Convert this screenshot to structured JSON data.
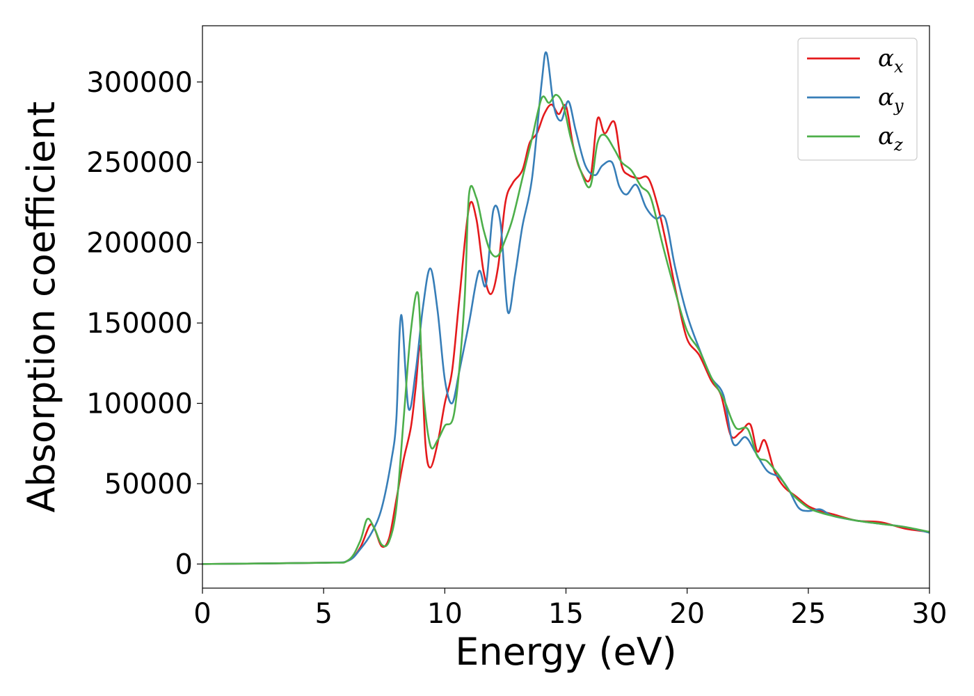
{
  "chart_data": {
    "type": "line",
    "xlabel": "Energy (eV)",
    "ylabel": "Absorption coefficient",
    "xlim": [
      0,
      30
    ],
    "ylim": [
      -15000,
      335000
    ],
    "xticks": [
      0,
      5,
      10,
      15,
      20,
      25,
      30
    ],
    "xtick_labels": [
      "0",
      "5",
      "10",
      "15",
      "20",
      "25",
      "30"
    ],
    "yticks": [
      0,
      50000,
      100000,
      150000,
      200000,
      250000,
      300000
    ],
    "ytick_labels": [
      "0",
      "50000",
      "100000",
      "150000",
      "200000",
      "250000",
      "300000"
    ],
    "grid": false,
    "legend_position": "top-right",
    "series": [
      {
        "name": "α_x",
        "legend_base": "α",
        "legend_sub": "x",
        "color": "#e41a1c",
        "points": [
          [
            0,
            0
          ],
          [
            5,
            800
          ],
          [
            6,
            2000
          ],
          [
            6.5,
            10000
          ],
          [
            6.9,
            24000
          ],
          [
            7.1,
            22000
          ],
          [
            7.4,
            11000
          ],
          [
            7.7,
            16000
          ],
          [
            8,
            40000
          ],
          [
            8.3,
            65000
          ],
          [
            8.6,
            85000
          ],
          [
            8.8,
            110000
          ],
          [
            9,
            135000
          ],
          [
            9.2,
            75000
          ],
          [
            9.4,
            60000
          ],
          [
            9.7,
            75000
          ],
          [
            10,
            100000
          ],
          [
            10.3,
            120000
          ],
          [
            10.6,
            165000
          ],
          [
            11,
            222000
          ],
          [
            11.3,
            215000
          ],
          [
            11.6,
            182000
          ],
          [
            11.9,
            168000
          ],
          [
            12.2,
            185000
          ],
          [
            12.5,
            225000
          ],
          [
            12.8,
            237000
          ],
          [
            13.2,
            245000
          ],
          [
            13.5,
            262000
          ],
          [
            13.8,
            268000
          ],
          [
            14.1,
            280000
          ],
          [
            14.4,
            286000
          ],
          [
            14.7,
            280000
          ],
          [
            15,
            285000
          ],
          [
            15.3,
            260000
          ],
          [
            15.6,
            245000
          ],
          [
            16,
            240000
          ],
          [
            16.3,
            277000
          ],
          [
            16.6,
            268000
          ],
          [
            17,
            275000
          ],
          [
            17.3,
            248000
          ],
          [
            17.6,
            242000
          ],
          [
            18,
            240000
          ],
          [
            18.4,
            240000
          ],
          [
            18.8,
            222000
          ],
          [
            19.2,
            195000
          ],
          [
            19.6,
            165000
          ],
          [
            20,
            140000
          ],
          [
            20.5,
            130000
          ],
          [
            21,
            114000
          ],
          [
            21.4,
            105000
          ],
          [
            21.8,
            80000
          ],
          [
            22.2,
            82000
          ],
          [
            22.6,
            87000
          ],
          [
            22.9,
            70000
          ],
          [
            23.2,
            77000
          ],
          [
            23.6,
            58000
          ],
          [
            24,
            48000
          ],
          [
            24.5,
            42000
          ],
          [
            25,
            36000
          ],
          [
            25.5,
            33000
          ],
          [
            26,
            31000
          ],
          [
            27,
            27000
          ],
          [
            28,
            26000
          ],
          [
            29,
            22000
          ],
          [
            30,
            20000
          ]
        ]
      },
      {
        "name": "α_y",
        "legend_base": "α",
        "legend_sub": "y",
        "color": "#377eb8",
        "points": [
          [
            0,
            0
          ],
          [
            5,
            800
          ],
          [
            6,
            2000
          ],
          [
            6.5,
            9000
          ],
          [
            7,
            20000
          ],
          [
            7.4,
            35000
          ],
          [
            7.8,
            65000
          ],
          [
            8,
            90000
          ],
          [
            8.2,
            155000
          ],
          [
            8.5,
            97000
          ],
          [
            8.8,
            120000
          ],
          [
            9.1,
            160000
          ],
          [
            9.4,
            184000
          ],
          [
            9.7,
            158000
          ],
          [
            10,
            115000
          ],
          [
            10.3,
            100000
          ],
          [
            10.6,
            120000
          ],
          [
            11,
            150000
          ],
          [
            11.4,
            182000
          ],
          [
            11.7,
            174000
          ],
          [
            12,
            220000
          ],
          [
            12.3,
            212000
          ],
          [
            12.6,
            157000
          ],
          [
            12.9,
            180000
          ],
          [
            13.2,
            210000
          ],
          [
            13.6,
            240000
          ],
          [
            14,
            300000
          ],
          [
            14.2,
            318000
          ],
          [
            14.5,
            285000
          ],
          [
            14.8,
            276000
          ],
          [
            15.1,
            288000
          ],
          [
            15.4,
            270000
          ],
          [
            15.8,
            248000
          ],
          [
            16.2,
            242000
          ],
          [
            16.5,
            248000
          ],
          [
            16.9,
            250000
          ],
          [
            17.2,
            235000
          ],
          [
            17.5,
            230000
          ],
          [
            17.9,
            236000
          ],
          [
            18.3,
            222000
          ],
          [
            18.7,
            215000
          ],
          [
            19.1,
            215000
          ],
          [
            19.5,
            185000
          ],
          [
            20,
            155000
          ],
          [
            20.5,
            134000
          ],
          [
            21,
            116000
          ],
          [
            21.5,
            105000
          ],
          [
            21.9,
            75000
          ],
          [
            22.4,
            79000
          ],
          [
            22.8,
            70000
          ],
          [
            23.3,
            58000
          ],
          [
            23.8,
            54000
          ],
          [
            24.2,
            46000
          ],
          [
            24.6,
            35000
          ],
          [
            25,
            33000
          ],
          [
            25.5,
            34000
          ],
          [
            26,
            30000
          ],
          [
            27,
            27000
          ],
          [
            28,
            25000
          ],
          [
            29,
            23000
          ],
          [
            30,
            19500
          ]
        ]
      },
      {
        "name": "α_z",
        "legend_base": "α",
        "legend_sub": "z",
        "color": "#4daf4a",
        "points": [
          [
            0,
            0
          ],
          [
            5,
            800
          ],
          [
            6,
            2200
          ],
          [
            6.5,
            14000
          ],
          [
            6.8,
            28000
          ],
          [
            7.1,
            22000
          ],
          [
            7.4,
            12000
          ],
          [
            7.7,
            14000
          ],
          [
            8,
            35000
          ],
          [
            8.3,
            90000
          ],
          [
            8.6,
            145000
          ],
          [
            8.9,
            168000
          ],
          [
            9.1,
            110000
          ],
          [
            9.4,
            74000
          ],
          [
            9.7,
            77000
          ],
          [
            10,
            86000
          ],
          [
            10.4,
            95000
          ],
          [
            10.8,
            160000
          ],
          [
            11,
            230000
          ],
          [
            11.3,
            228000
          ],
          [
            11.6,
            208000
          ],
          [
            11.9,
            194000
          ],
          [
            12.2,
            192000
          ],
          [
            12.5,
            202000
          ],
          [
            12.8,
            215000
          ],
          [
            13.2,
            240000
          ],
          [
            13.6,
            265000
          ],
          [
            14,
            290000
          ],
          [
            14.3,
            287000
          ],
          [
            14.6,
            292000
          ],
          [
            14.9,
            285000
          ],
          [
            15.2,
            265000
          ],
          [
            15.6,
            245000
          ],
          [
            16,
            235000
          ],
          [
            16.3,
            262000
          ],
          [
            16.6,
            267000
          ],
          [
            17,
            258000
          ],
          [
            17.3,
            250000
          ],
          [
            17.7,
            245000
          ],
          [
            18.1,
            235000
          ],
          [
            18.5,
            228000
          ],
          [
            19,
            198000
          ],
          [
            19.5,
            170000
          ],
          [
            20,
            145000
          ],
          [
            20.5,
            133000
          ],
          [
            21,
            116000
          ],
          [
            21.5,
            103000
          ],
          [
            22,
            85000
          ],
          [
            22.5,
            84000
          ],
          [
            22.9,
            67000
          ],
          [
            23.3,
            64000
          ],
          [
            23.8,
            55000
          ],
          [
            24.3,
            44000
          ],
          [
            25,
            35000
          ],
          [
            25.5,
            32000
          ],
          [
            26,
            30000
          ],
          [
            27,
            27000
          ],
          [
            28,
            25000
          ],
          [
            29,
            23000
          ],
          [
            30,
            20000
          ]
        ]
      }
    ]
  }
}
